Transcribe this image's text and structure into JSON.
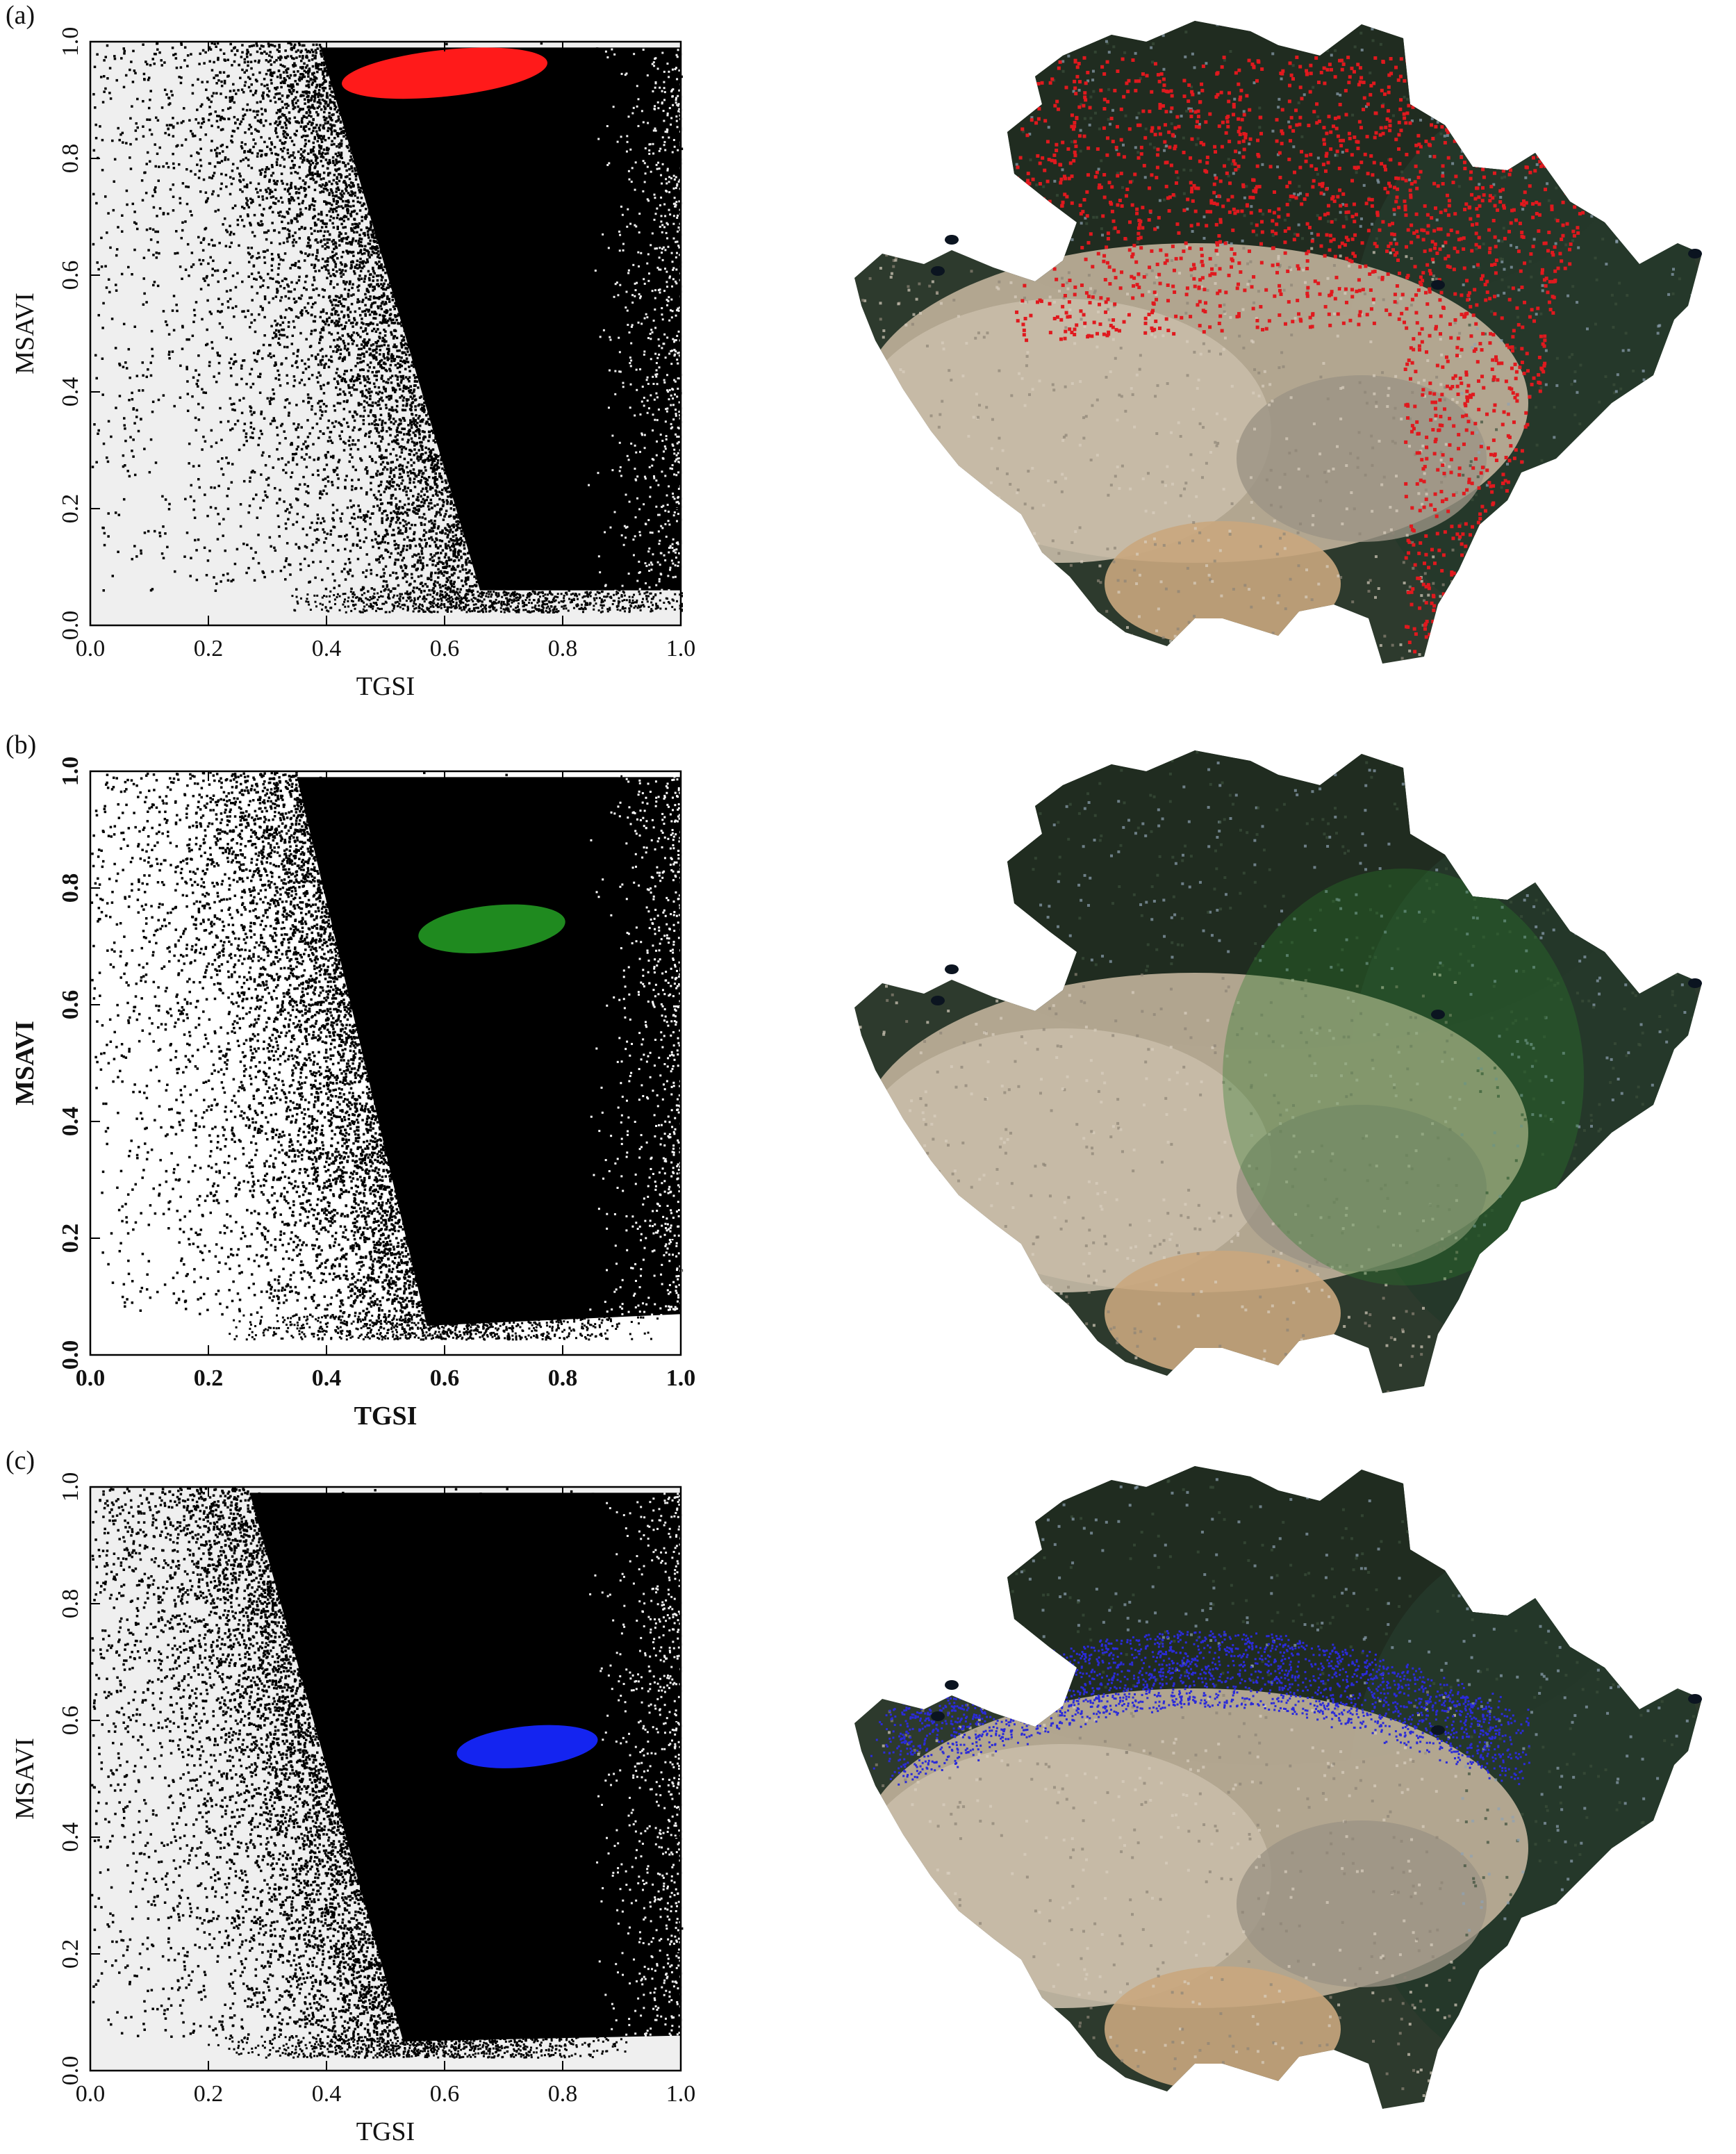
{
  "panels": [
    {
      "label": "(a)",
      "chart_data": {
        "type": "scatter",
        "xlabel": "TGSI",
        "ylabel": "MSAVI",
        "xlim": [
          0.0,
          1.0
        ],
        "ylim": [
          0.0,
          1.0
        ],
        "xticks": [
          "0.0",
          "0.2",
          "0.4",
          "0.6",
          "0.8",
          "1.0"
        ],
        "yticks": [
          "0.0",
          "0.2",
          "0.4",
          "0.6",
          "0.8",
          "1.0"
        ],
        "plot_background": "#efefef",
        "point_color": "#000000",
        "highlight_color": "#ff1a1a",
        "highlight_region": {
          "x_range": [
            0.42,
            0.77
          ],
          "y_range": [
            0.91,
            0.99
          ],
          "x_center": 0.6,
          "y_center": 0.946
        },
        "density_ridge": {
          "y_top": 0.99,
          "x_at_top": 0.39,
          "y_bottom": 0.06,
          "x_at_bottom": 0.66,
          "floor_y": 0.06
        }
      },
      "map": {
        "overlay_color": "#e0191e",
        "overlay_zone": "north-east"
      }
    },
    {
      "label": "(b)",
      "chart_data": {
        "type": "scatter",
        "xlabel": "TGSI",
        "ylabel": "MSAVI",
        "xlim": [
          0.0,
          1.0
        ],
        "ylim": [
          0.0,
          1.0
        ],
        "xticks": [
          "0.0",
          "0.2",
          "0.4",
          "0.6",
          "0.8",
          "1.0"
        ],
        "yticks": [
          "0.0",
          "0.2",
          "0.4",
          "0.6",
          "0.8",
          "1.0"
        ],
        "plot_background": "#ffffff",
        "point_color": "#000000",
        "highlight_color": "#1f8a1f",
        "highlight_region": {
          "x_range": [
            0.55,
            0.8
          ],
          "y_range": [
            0.69,
            0.77
          ],
          "x_center": 0.68,
          "y_center": 0.73
        },
        "density_ridge": {
          "y_top": 0.99,
          "x_at_top": 0.35,
          "y_bottom": 0.05,
          "x_at_bottom": 0.57,
          "floor_y": 0.07
        }
      },
      "map": {
        "overlay_color": "#2a7a2a",
        "overlay_zone": "none"
      }
    },
    {
      "label": "(c)",
      "chart_data": {
        "type": "scatter",
        "xlabel": "TGSI",
        "ylabel": "MSAVI",
        "xlim": [
          0.0,
          1.0
        ],
        "ylim": [
          0.0,
          1.0
        ],
        "xticks": [
          "0.0",
          "0.2",
          "0.4",
          "0.6",
          "0.8",
          "1.0"
        ],
        "yticks": [
          "0.0",
          "0.2",
          "0.4",
          "0.6",
          "0.8",
          "1.0"
        ],
        "plot_background": "#efefef",
        "point_color": "#000000",
        "highlight_color": "#1424f0",
        "highlight_region": {
          "x_range": [
            0.62,
            0.86
          ],
          "y_range": [
            0.52,
            0.59
          ],
          "x_center": 0.74,
          "y_center": 0.555
        },
        "density_ridge": {
          "y_top": 0.99,
          "x_at_top": 0.27,
          "y_bottom": 0.05,
          "x_at_bottom": 0.53,
          "floor_y": 0.06
        }
      },
      "map": {
        "overlay_color": "#2b2bd9",
        "overlay_zone": "central-belt"
      }
    }
  ]
}
